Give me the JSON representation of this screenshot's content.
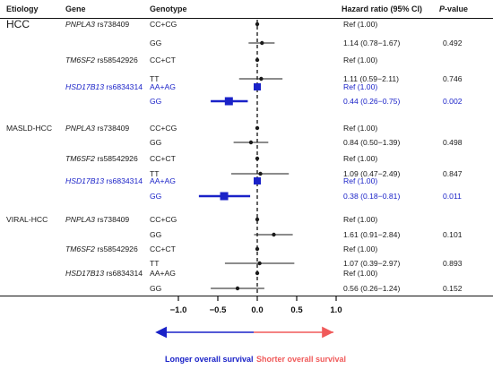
{
  "headers": {
    "etiology": "Etiology",
    "gene": "Gene",
    "genotype": "Genotype",
    "hr": "Hazard ratio (95% CI)",
    "p_prefix": "P",
    "p_suffix": "-value"
  },
  "groups": [
    {
      "label": "HCC",
      "big": true
    },
    {
      "label": "MASLD-HCC",
      "big": false
    },
    {
      "label": "VIRAL-HCC",
      "big": false
    }
  ],
  "rows": [
    {
      "group": 0,
      "gene_italic": "PNPLA3",
      "gene_snp": " rs738409",
      "genotype": "CC+CG",
      "hr_text": "Ref (1.00)",
      "p": "",
      "blue": false
    },
    {
      "group": 0,
      "gene_italic": "",
      "gene_snp": "",
      "genotype": "GG",
      "hr_text": "1.14 (0.78−1.67)",
      "p": "0.492",
      "blue": false
    },
    {
      "group": 0,
      "gene_italic": "TM6SF2",
      "gene_snp": " rs58542926",
      "genotype": "CC+CT",
      "hr_text": "Ref (1.00)",
      "p": "",
      "blue": false
    },
    {
      "group": 0,
      "gene_italic": "",
      "gene_snp": "",
      "genotype": "TT",
      "hr_text": "1.11 (0.59−2.11)",
      "p": "0.746",
      "blue": false
    },
    {
      "group": 0,
      "gene_italic": "HSD17B13",
      "gene_snp": " rs6834314",
      "genotype": "AA+AG",
      "hr_text": "Ref (1.00)",
      "p": "",
      "blue": true
    },
    {
      "group": 0,
      "gene_italic": "",
      "gene_snp": "",
      "genotype": "GG",
      "hr_text": "0.44 (0.26−0.75)",
      "p": "0.002",
      "blue": true
    },
    {
      "group": 1,
      "gene_italic": "PNPLA3",
      "gene_snp": " rs738409",
      "genotype": "CC+CG",
      "hr_text": "Ref (1.00)",
      "p": "",
      "blue": false
    },
    {
      "group": 1,
      "gene_italic": "",
      "gene_snp": "",
      "genotype": "GG",
      "hr_text": "0.84 (0.50−1.39)",
      "p": "0.498",
      "blue": false
    },
    {
      "group": 1,
      "gene_italic": "TM6SF2",
      "gene_snp": " rs58542926",
      "genotype": "CC+CT",
      "hr_text": "Ref (1.00)",
      "p": "",
      "blue": false
    },
    {
      "group": 1,
      "gene_italic": "",
      "gene_snp": "",
      "genotype": "TT",
      "hr_text": "1.09  (0.47−2.49)",
      "p": "0.847",
      "blue": false
    },
    {
      "group": 1,
      "gene_italic": "HSD17B13",
      "gene_snp": " rs6834314",
      "genotype": "AA+AG",
      "hr_text": "Ref (1.00)",
      "p": "",
      "blue": true
    },
    {
      "group": 1,
      "gene_italic": "",
      "gene_snp": "",
      "genotype": "GG",
      "hr_text": "0.38 (0.18−0.81)",
      "p": "0.011",
      "blue": true
    },
    {
      "group": 2,
      "gene_italic": "PNPLA3",
      "gene_snp": " rs738409",
      "genotype": "CC+CG",
      "hr_text": "Ref (1.00)",
      "p": "",
      "blue": false
    },
    {
      "group": 2,
      "gene_italic": "",
      "gene_snp": "",
      "genotype": "GG",
      "hr_text": "1.61 (0.91−2.84)",
      "p": "0.101",
      "blue": false
    },
    {
      "group": 2,
      "gene_italic": "TM6SF2",
      "gene_snp": " rs58542926",
      "genotype": "CC+CT",
      "hr_text": "Ref (1.00)",
      "p": "",
      "blue": false
    },
    {
      "group": 2,
      "gene_italic": "",
      "gene_snp": "",
      "genotype": "TT",
      "hr_text": "1.07 (0.39−2.97)",
      "p": "0.893",
      "blue": false
    },
    {
      "group": 2,
      "gene_italic": "HSD17B13",
      "gene_snp": " rs6834314",
      "genotype": "AA+AG",
      "hr_text": "Ref (1.00)",
      "p": "",
      "blue": false
    },
    {
      "group": 2,
      "gene_italic": "",
      "gene_snp": "",
      "genotype": "GG",
      "hr_text": "0.56 (0.26−1.24)",
      "p": "0.152",
      "blue": false
    }
  ],
  "legend": {
    "left": "Longer  overall survival",
    "right": "Shorter overall survival",
    "left_color": "#1a22c8",
    "right_color": "#f05a5a"
  },
  "colors": {
    "highlight": "#1a22c8",
    "default": "#1a1a1a"
  },
  "chart_data": {
    "type": "scatter",
    "subtype": "forest",
    "xlim": [
      -1.0,
      1.0
    ],
    "xticks": [
      -1.0,
      -0.5,
      0.0,
      0.5,
      1.0
    ],
    "xtick_labels": [
      "−1.0",
      "−0.5",
      "0.0",
      "0.5",
      "1.0"
    ],
    "reference_line": 0.0,
    "reference_style": "dashed",
    "points": [
      {
        "est": 0.0,
        "lo": 0.0,
        "hi": 0.0,
        "ref": true,
        "blue": false
      },
      {
        "est": 0.06,
        "lo": -0.11,
        "hi": 0.22,
        "ref": false,
        "blue": false
      },
      {
        "est": 0.0,
        "lo": 0.0,
        "hi": 0.0,
        "ref": true,
        "blue": false
      },
      {
        "est": 0.05,
        "lo": -0.23,
        "hi": 0.32,
        "ref": false,
        "blue": false
      },
      {
        "est": 0.0,
        "lo": 0.0,
        "hi": 0.0,
        "ref": true,
        "blue": true
      },
      {
        "est": -0.36,
        "lo": -0.59,
        "hi": -0.12,
        "ref": false,
        "blue": true
      },
      {
        "est": 0.0,
        "lo": 0.0,
        "hi": 0.0,
        "ref": true,
        "blue": false
      },
      {
        "est": -0.08,
        "lo": -0.3,
        "hi": 0.14,
        "ref": false,
        "blue": false
      },
      {
        "est": 0.0,
        "lo": 0.0,
        "hi": 0.0,
        "ref": true,
        "blue": false
      },
      {
        "est": 0.04,
        "lo": -0.33,
        "hi": 0.4,
        "ref": false,
        "blue": false
      },
      {
        "est": 0.0,
        "lo": 0.0,
        "hi": 0.0,
        "ref": true,
        "blue": true
      },
      {
        "est": -0.42,
        "lo": -0.74,
        "hi": -0.09,
        "ref": false,
        "blue": true
      },
      {
        "est": 0.0,
        "lo": 0.0,
        "hi": 0.0,
        "ref": true,
        "blue": false
      },
      {
        "est": 0.21,
        "lo": -0.04,
        "hi": 0.45,
        "ref": false,
        "blue": false
      },
      {
        "est": 0.0,
        "lo": 0.0,
        "hi": 0.0,
        "ref": true,
        "blue": false
      },
      {
        "est": 0.03,
        "lo": -0.41,
        "hi": 0.47,
        "ref": false,
        "blue": false
      },
      {
        "est": 0.0,
        "lo": 0.0,
        "hi": 0.0,
        "ref": true,
        "blue": false
      },
      {
        "est": -0.25,
        "lo": -0.59,
        "hi": 0.09,
        "ref": false,
        "blue": false
      }
    ]
  }
}
